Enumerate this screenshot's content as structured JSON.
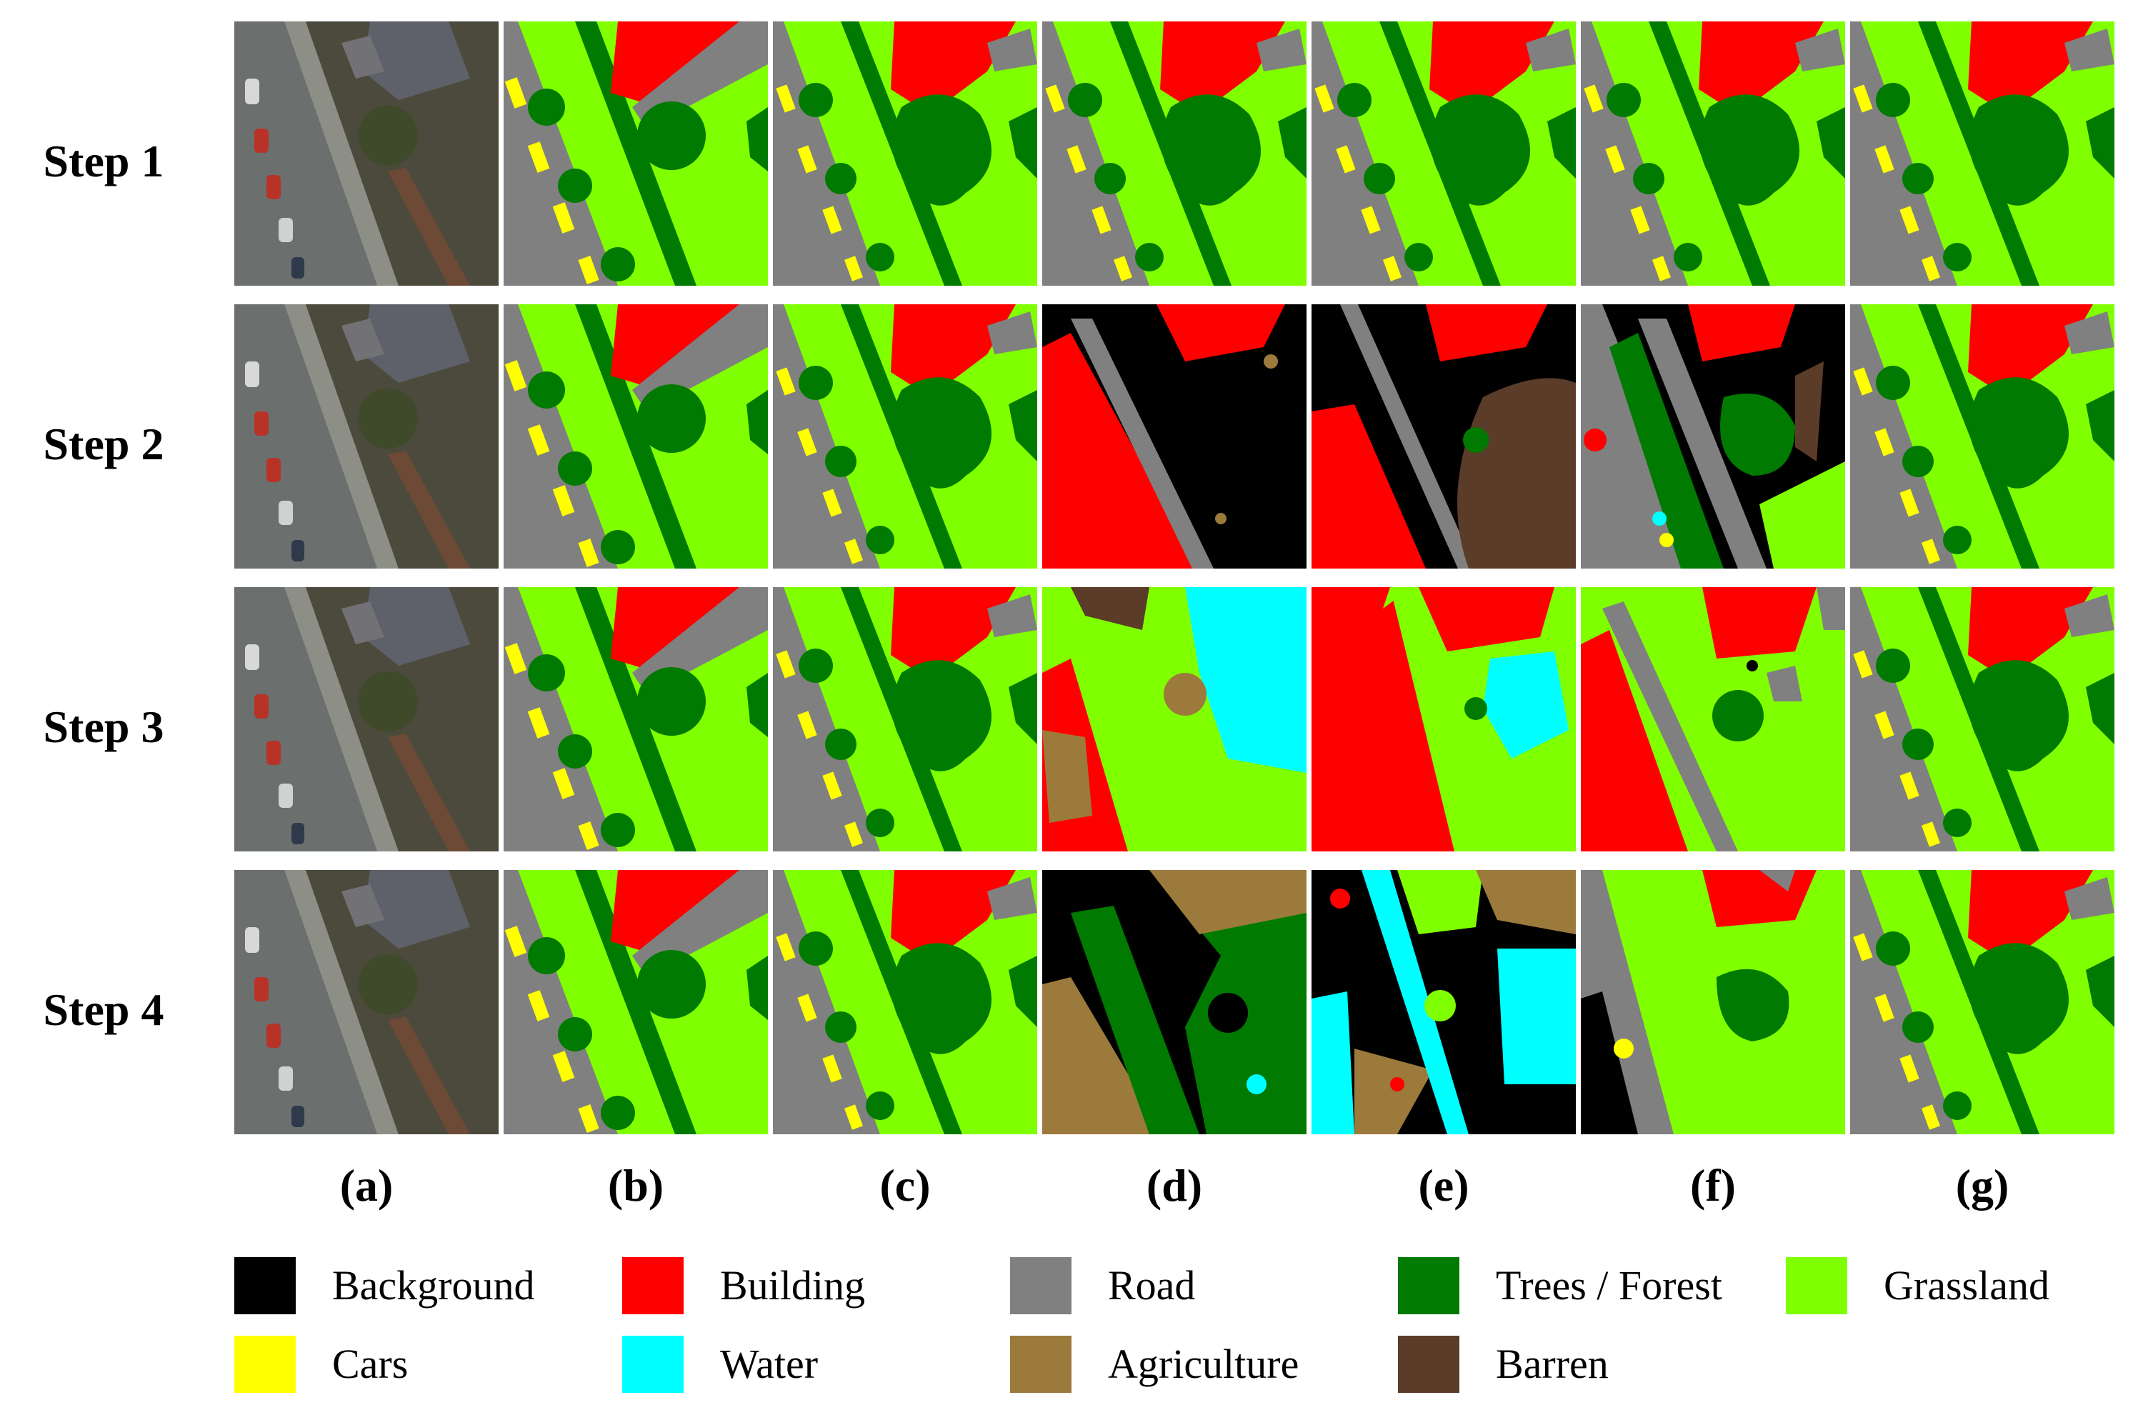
{
  "figure": {
    "rows": [
      "Step 1",
      "Step 2",
      "Step 3",
      "Step 4"
    ],
    "columns": [
      "(a)",
      "(b)",
      "(c)",
      "(d)",
      "(e)",
      "(f)",
      "(g)"
    ],
    "panel_pattern": [
      [
        "photo",
        "ground-truth",
        "good",
        "good",
        "good",
        "good",
        "good"
      ],
      [
        "photo",
        "ground-truth",
        "good",
        "black",
        "black-barren",
        "mixed",
        "good"
      ],
      [
        "photo",
        "ground-truth",
        "good",
        "water-mixed",
        "water-red",
        "red-mixed",
        "good"
      ],
      [
        "photo",
        "ground-truth",
        "good",
        "agri-black",
        "cyan-chaos",
        "grass-mixed",
        "good"
      ]
    ]
  },
  "legend": [
    {
      "label": "Background",
      "color": "#000000"
    },
    {
      "label": "Building",
      "color": "#ff0000"
    },
    {
      "label": "Road",
      "color": "#808080"
    },
    {
      "label": "Trees / Forest",
      "color": "#007a00"
    },
    {
      "label": "Grassland",
      "color": "#80ff00"
    },
    {
      "label": "Cars",
      "color": "#ffff00"
    },
    {
      "label": "Water",
      "color": "#00ffff"
    },
    {
      "label": "Agriculture",
      "color": "#9c7a3c"
    },
    {
      "label": "Barren",
      "color": "#5a3c28"
    }
  ]
}
